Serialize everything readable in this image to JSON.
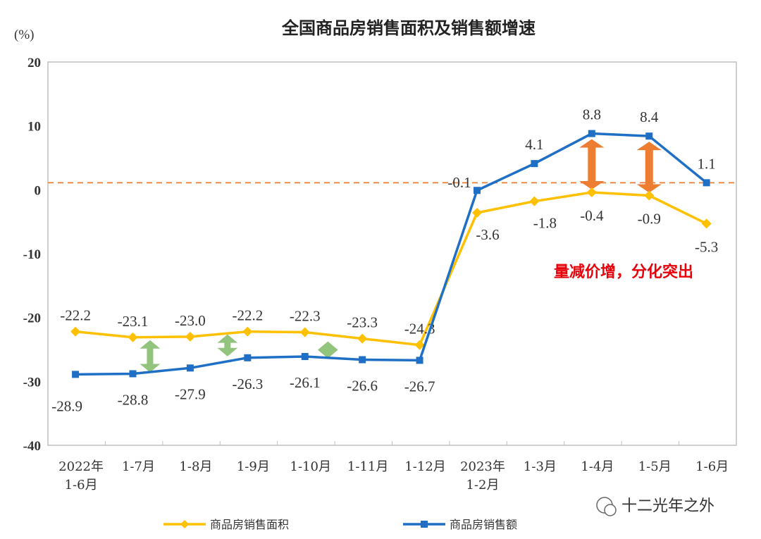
{
  "chart_data": {
    "type": "line",
    "title": "全国商品房销售面积及销售额增速",
    "ylabel": "(%)",
    "ylim": [
      -40,
      20
    ],
    "yticks": [
      20,
      10,
      0,
      -10,
      -20,
      -30,
      -40
    ],
    "categories": [
      [
        "2022年",
        "1-6月"
      ],
      [
        "1-7月"
      ],
      [
        "1-8月"
      ],
      [
        "1-9月"
      ],
      [
        "1-10月"
      ],
      [
        "1-11月"
      ],
      [
        "1-12月"
      ],
      [
        "2023年",
        "1-2月"
      ],
      [
        "1-3月"
      ],
      [
        "1-4月"
      ],
      [
        "1-5月"
      ],
      [
        "1-6月"
      ]
    ],
    "series": [
      {
        "name": "商品房销售面积",
        "color": "#ffc000",
        "marker": "diamond",
        "values": [
          -22.2,
          -23.1,
          -23.0,
          -22.2,
          -22.3,
          -23.3,
          -24.3,
          -3.6,
          -1.8,
          -0.4,
          -0.9,
          -5.3
        ],
        "labels": [
          "-22.2",
          "-23.1",
          "-23.0",
          "-22.2",
          "-22.3",
          "-23.3",
          "-24.3",
          "-3.6",
          "-1.8",
          "-0.4",
          "-0.9",
          "-5.3"
        ]
      },
      {
        "name": "商品房销售额",
        "color": "#1f6fc5",
        "marker": "square",
        "values": [
          -28.9,
          -28.8,
          -27.9,
          -26.3,
          -26.1,
          -26.6,
          -26.7,
          -0.1,
          4.1,
          8.8,
          8.4,
          1.1
        ],
        "labels": [
          "-28.9",
          "-28.8",
          "-27.9",
          "-26.3",
          "-26.1",
          "-26.6",
          "-26.7",
          "-0.1",
          "4.1",
          "8.8",
          "8.4",
          "1.1"
        ]
      }
    ],
    "reference_line": {
      "value": 1.1,
      "color": "#ed7d31",
      "style": "dashed"
    },
    "annotation": "量减价增，分化突出",
    "legend_position": "bottom"
  },
  "watermark": "十二光年之外",
  "colors": {
    "green_arrow": "#92c47d",
    "orange_arrow": "#ed7d31",
    "annotation": "#e8000b"
  }
}
